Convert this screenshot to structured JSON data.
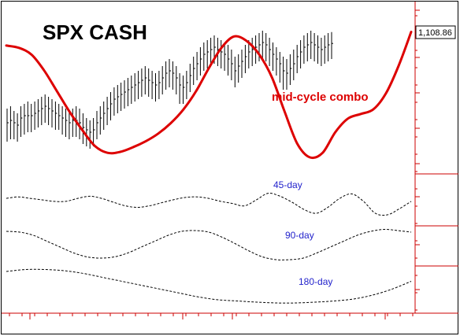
{
  "chart_data": {
    "type": "line",
    "title": "SPX CASH",
    "price_label": "1,108.86",
    "annotation": "mid-cycle combo",
    "colors": {
      "price": "#000000",
      "combo": "#dd0000",
      "cycle": "#000000",
      "cycle_label": "#2222cc",
      "axis": "#cc0000",
      "frame": "#000000"
    },
    "series": [
      {
        "key": "price_bars",
        "style": "ohlc-bars",
        "values": [
          [
            1.0,
            0.7,
            0.3
          ],
          [
            1.05,
            0.75,
            0.35
          ],
          [
            0.95,
            0.7,
            0.35
          ],
          [
            0.9,
            0.65,
            0.3
          ],
          [
            1.05,
            0.8,
            0.4
          ],
          [
            1.1,
            0.85,
            0.45
          ],
          [
            1.15,
            0.85,
            0.5
          ],
          [
            1.1,
            0.85,
            0.5
          ],
          [
            1.15,
            0.9,
            0.55
          ],
          [
            1.2,
            0.95,
            0.6
          ],
          [
            1.25,
            1.0,
            0.65
          ],
          [
            1.3,
            1.05,
            0.7
          ],
          [
            1.25,
            1.0,
            0.65
          ],
          [
            1.2,
            0.95,
            0.6
          ],
          [
            1.15,
            0.9,
            0.55
          ],
          [
            1.1,
            0.85,
            0.55
          ],
          [
            1.05,
            0.8,
            0.45
          ],
          [
            1.0,
            0.75,
            0.4
          ],
          [
            0.95,
            0.7,
            0.35
          ],
          [
            1.0,
            0.75,
            0.4
          ],
          [
            1.05,
            0.75,
            0.4
          ],
          [
            1.0,
            0.7,
            0.35
          ],
          [
            0.9,
            0.6,
            0.25
          ],
          [
            0.8,
            0.55,
            0.2
          ],
          [
            0.75,
            0.5,
            0.15
          ],
          [
            0.8,
            0.55,
            0.2
          ],
          [
            0.95,
            0.7,
            0.35
          ],
          [
            1.05,
            0.8,
            0.45
          ],
          [
            1.15,
            0.9,
            0.55
          ],
          [
            1.25,
            1.0,
            0.65
          ],
          [
            1.35,
            1.1,
            0.75
          ],
          [
            1.45,
            1.2,
            0.85
          ],
          [
            1.5,
            1.25,
            0.9
          ],
          [
            1.55,
            1.3,
            0.95
          ],
          [
            1.6,
            1.35,
            1.0
          ],
          [
            1.65,
            1.4,
            1.05
          ],
          [
            1.7,
            1.45,
            1.1
          ],
          [
            1.75,
            1.5,
            1.15
          ],
          [
            1.8,
            1.55,
            1.2
          ],
          [
            1.85,
            1.6,
            1.25
          ],
          [
            1.9,
            1.65,
            1.3
          ],
          [
            1.85,
            1.6,
            1.25
          ],
          [
            1.8,
            1.55,
            1.2
          ],
          [
            1.75,
            1.5,
            1.15
          ],
          [
            1.8,
            1.55,
            1.2
          ],
          [
            1.9,
            1.65,
            1.3
          ],
          [
            2.0,
            1.75,
            1.4
          ],
          [
            2.05,
            1.8,
            1.45
          ],
          [
            2.0,
            1.75,
            1.4
          ],
          [
            1.9,
            1.65,
            1.3
          ],
          [
            1.75,
            1.5,
            1.1
          ],
          [
            1.7,
            1.45,
            1.1
          ],
          [
            1.8,
            1.55,
            1.2
          ],
          [
            1.95,
            1.7,
            1.35
          ],
          [
            2.1,
            1.85,
            1.5
          ],
          [
            2.2,
            1.95,
            1.6
          ],
          [
            2.3,
            2.05,
            1.7
          ],
          [
            2.4,
            2.15,
            1.8
          ],
          [
            2.45,
            2.2,
            1.85
          ],
          [
            2.5,
            2.25,
            1.9
          ],
          [
            2.55,
            2.3,
            1.95
          ],
          [
            2.5,
            2.25,
            1.9
          ],
          [
            2.45,
            2.2,
            1.85
          ],
          [
            2.4,
            2.15,
            1.8
          ],
          [
            2.35,
            2.05,
            1.7
          ],
          [
            2.25,
            1.95,
            1.6
          ],
          [
            2.1,
            1.8,
            1.45
          ],
          [
            2.15,
            1.9,
            1.55
          ],
          [
            2.25,
            2.0,
            1.65
          ],
          [
            2.35,
            2.1,
            1.75
          ],
          [
            2.45,
            2.2,
            1.85
          ],
          [
            2.5,
            2.25,
            1.9
          ],
          [
            2.55,
            2.3,
            1.95
          ],
          [
            2.6,
            2.35,
            2.0
          ],
          [
            2.65,
            2.4,
            2.05
          ],
          [
            2.6,
            2.35,
            2.0
          ],
          [
            2.5,
            2.25,
            1.9
          ],
          [
            2.4,
            2.15,
            1.8
          ],
          [
            2.3,
            2.05,
            1.7
          ],
          [
            2.2,
            1.95,
            1.55
          ],
          [
            2.1,
            1.8,
            1.4
          ],
          [
            2.05,
            1.75,
            1.4
          ],
          [
            2.15,
            1.85,
            1.5
          ],
          [
            2.25,
            1.95,
            1.6
          ],
          [
            2.35,
            2.1,
            1.75
          ],
          [
            2.45,
            2.2,
            1.85
          ],
          [
            2.55,
            2.3,
            1.95
          ],
          [
            2.6,
            2.35,
            2.0
          ],
          [
            2.65,
            2.4,
            2.05
          ],
          [
            2.6,
            2.35,
            2.0
          ],
          [
            2.55,
            2.3,
            1.95
          ],
          [
            2.5,
            2.25,
            1.9
          ],
          [
            2.55,
            2.3,
            1.95
          ],
          [
            2.6,
            2.35,
            2.0
          ],
          [
            2.62,
            2.38,
            2.05
          ]
        ]
      },
      {
        "key": "combo",
        "name": "mid-cycle combo",
        "style": "line",
        "values": [
          2.45,
          2.4,
          2.25,
          1.9,
          1.45,
          1.0,
          0.6,
          0.25,
          0.1,
          0.12,
          0.22,
          0.35,
          0.52,
          0.75,
          1.05,
          1.45,
          1.95,
          2.4,
          2.65,
          2.55,
          2.25,
          1.75,
          1.0,
          0.3,
          0.0,
          0.1,
          0.55,
          0.85,
          0.95,
          1.05,
          1.4,
          2.0,
          2.75
        ]
      },
      {
        "key": "cycle45",
        "name": "45-day",
        "style": "dashed",
        "values": [
          0.55,
          0.6,
          0.55,
          0.5,
          0.45,
          0.45,
          0.55,
          0.62,
          0.55,
          0.42,
          0.3,
          0.25,
          0.3,
          0.4,
          0.5,
          0.58,
          0.6,
          0.55,
          0.45,
          0.38,
          0.3,
          0.5,
          0.72,
          0.62,
          0.42,
          0.18,
          0.05,
          0.25,
          0.55,
          0.7,
          0.45,
          0.05,
          0.0,
          0.2,
          0.45
        ]
      },
      {
        "key": "cycle90",
        "name": "90-day",
        "style": "dashed",
        "values": [
          0.8,
          0.78,
          0.7,
          0.55,
          0.4,
          0.25,
          0.15,
          0.12,
          0.15,
          0.25,
          0.4,
          0.55,
          0.7,
          0.8,
          0.82,
          0.78,
          0.65,
          0.48,
          0.3,
          0.15,
          0.08,
          0.08,
          0.12,
          0.25,
          0.4,
          0.55,
          0.7,
          0.8,
          0.85,
          0.82,
          0.78
        ]
      },
      {
        "key": "cycle180",
        "name": "180-day",
        "style": "dashed",
        "values": [
          0.8,
          0.85,
          0.85,
          0.82,
          0.75,
          0.65,
          0.55,
          0.45,
          0.35,
          0.25,
          0.15,
          0.08,
          0.05,
          0.02,
          0.0,
          0.0,
          0.02,
          0.05,
          0.1,
          0.2,
          0.35,
          0.55
        ]
      }
    ],
    "cycle_labels": [
      "45-day",
      "90-day",
      "180-day"
    ],
    "grid": false,
    "legend": "none"
  }
}
